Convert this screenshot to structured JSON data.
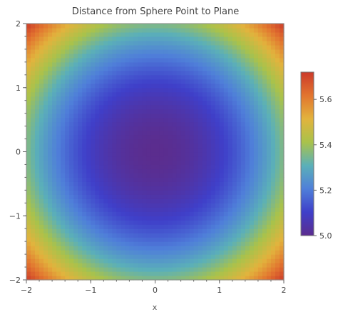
{
  "chart_data": {
    "type": "heatmap",
    "title": "Distance from Sphere Point to Plane",
    "xlabel": "x",
    "ylabel": "",
    "xlim": [
      -2,
      2
    ],
    "ylim": [
      -2,
      2
    ],
    "x_ticks": [
      "−2",
      "−1",
      "0",
      "1",
      "2"
    ],
    "y_ticks": [
      "−2",
      "−1",
      "0",
      "1",
      "2"
    ],
    "x_tick_values": [
      -2,
      -1,
      0,
      1,
      2
    ],
    "y_tick_values": [
      -2,
      -1,
      0,
      1,
      2
    ],
    "value_range": [
      5.0,
      5.72
    ],
    "field_description": "radially symmetric, minimum at origin",
    "samples": [
      {
        "x": 0,
        "y": 0,
        "value": 5.0
      },
      {
        "x": 1,
        "y": 0,
        "value": 5.12
      },
      {
        "x": 1,
        "y": 1,
        "value": 5.25
      },
      {
        "x": 2,
        "y": 0,
        "value": 5.4
      },
      {
        "x": 2,
        "y": 2,
        "value": 5.72
      }
    ],
    "colorbar": {
      "ticks": [
        "5.0",
        "5.2",
        "5.4",
        "5.6"
      ],
      "tick_values": [
        5.0,
        5.2,
        5.4,
        5.6
      ],
      "range": [
        5.0,
        5.72
      ]
    },
    "colormap": [
      "#5b2d8e",
      "#3f3fc9",
      "#4f7fd9",
      "#5bb0b8",
      "#a9c24b",
      "#e2b33d",
      "#e2752f",
      "#cc3a2a"
    ],
    "grid": false,
    "legend": "right"
  }
}
